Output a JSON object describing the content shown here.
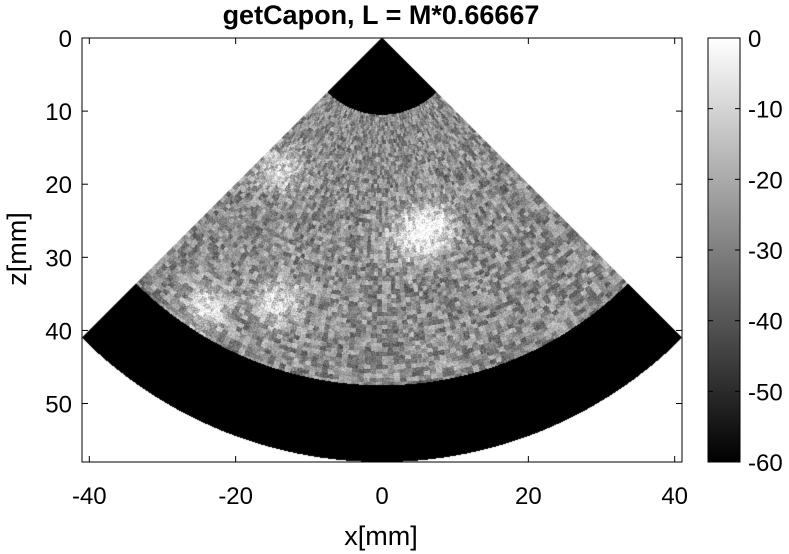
{
  "chart_data": {
    "type": "heatmap",
    "title": "getCapon, L = M*0.66667",
    "xlabel": "x[mm]",
    "ylabel": "z[mm]",
    "xlim": [
      -41,
      41
    ],
    "ylim": [
      0,
      58
    ],
    "y_reversed": true,
    "xticks": [
      -40,
      -20,
      0,
      20,
      40
    ],
    "yticks": [
      0,
      10,
      20,
      30,
      40,
      50
    ],
    "colormap": "gray",
    "clim": [
      -60,
      0
    ],
    "colorbar_ticks": [
      0,
      -10,
      -20,
      -30,
      -40,
      -50,
      -60
    ],
    "image": {
      "kind": "sector-scan",
      "apex": [
        0,
        0
      ],
      "half_angle_deg": 45,
      "r_min": 0,
      "r_max": 58,
      "speckle_r_min": 10.5,
      "speckle_r_max": 47.5,
      "background_dB": -20,
      "outside_speckle_dB": -60,
      "bright_regions": [
        {
          "x": -24,
          "z": 37,
          "level_dB": -6
        },
        {
          "x": 4,
          "z": 27,
          "level_dB": -5
        },
        {
          "x": 7,
          "z": 26,
          "level_dB": -5
        },
        {
          "x": -14,
          "z": 36,
          "level_dB": -5
        },
        {
          "x": -14,
          "z": 18,
          "level_dB": -8
        }
      ]
    }
  }
}
